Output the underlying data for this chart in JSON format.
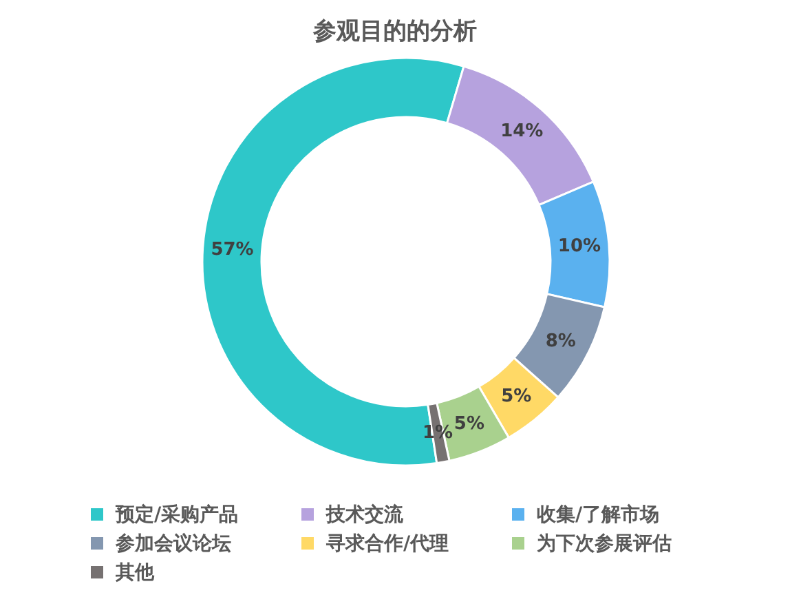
{
  "chart_data": {
    "type": "donut",
    "title": "参观目的的分析",
    "categories": [
      "预定/采购产品",
      "技术交流",
      "收集/了解市场",
      "参加会议论坛",
      "寻求合作/代理",
      "为下次参展评估",
      "其他"
    ],
    "values": [
      57,
      14,
      10,
      8,
      5,
      5,
      1
    ],
    "colors": [
      "#2ec7c9",
      "#b6a2de",
      "#5ab1ef",
      "#8497b0",
      "#ffd966",
      "#a9d18e",
      "#767171"
    ],
    "value_labels": [
      "57%",
      "14%",
      "10%",
      "8%",
      "5%",
      "5%",
      "1%"
    ],
    "legend": "bottom"
  }
}
